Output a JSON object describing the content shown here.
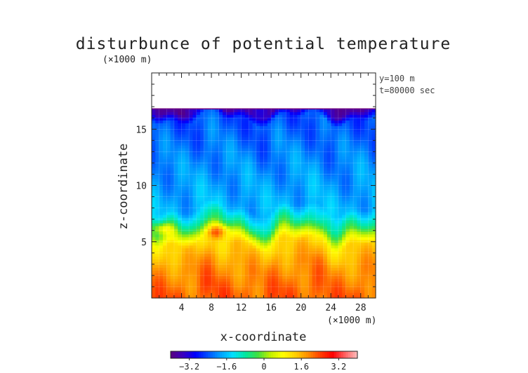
{
  "chart_data": {
    "type": "heatmap",
    "title": "disturbunce of potential temperature",
    "unit_label": "(×1000 m)",
    "annotations": [
      "y=100 m",
      "t=80000 sec"
    ],
    "xlabel": "x-coordinate",
    "ylabel": "z-coordinate",
    "x_unit_label": "(×1000 m)",
    "xlim": [
      0,
      30
    ],
    "ylim": [
      0,
      20
    ],
    "x_ticks": [
      4,
      8,
      12,
      16,
      20,
      24,
      28
    ],
    "y_ticks": [
      5,
      10,
      15
    ],
    "data_top_z": 16.8,
    "colorbar": {
      "range": [
        -4,
        4
      ],
      "ticks": [
        -3.2,
        -1.6,
        0,
        1.6,
        3.2
      ],
      "tick_labels": [
        "−3.2",
        "−1.6",
        "0",
        "1.6",
        "3.2"
      ],
      "colors": [
        "#5a007f",
        "#3a00c0",
        "#0000ff",
        "#0050ff",
        "#00a0ff",
        "#00e0ff",
        "#00e8a0",
        "#40e040",
        "#c0f000",
        "#ffff00",
        "#ffd000",
        "#ff9000",
        "#ff4000",
        "#ff0000",
        "#ff6060",
        "#ffc0c0"
      ]
    },
    "description_values": {
      "z_levels": [
        0.5,
        3,
        5,
        6.5,
        8,
        12,
        16,
        16.8
      ],
      "typical_values": [
        2.2,
        1.8,
        1.2,
        -0.6,
        -1.7,
        -2.0,
        -2.4,
        -3.6
      ]
    },
    "grid": true
  }
}
